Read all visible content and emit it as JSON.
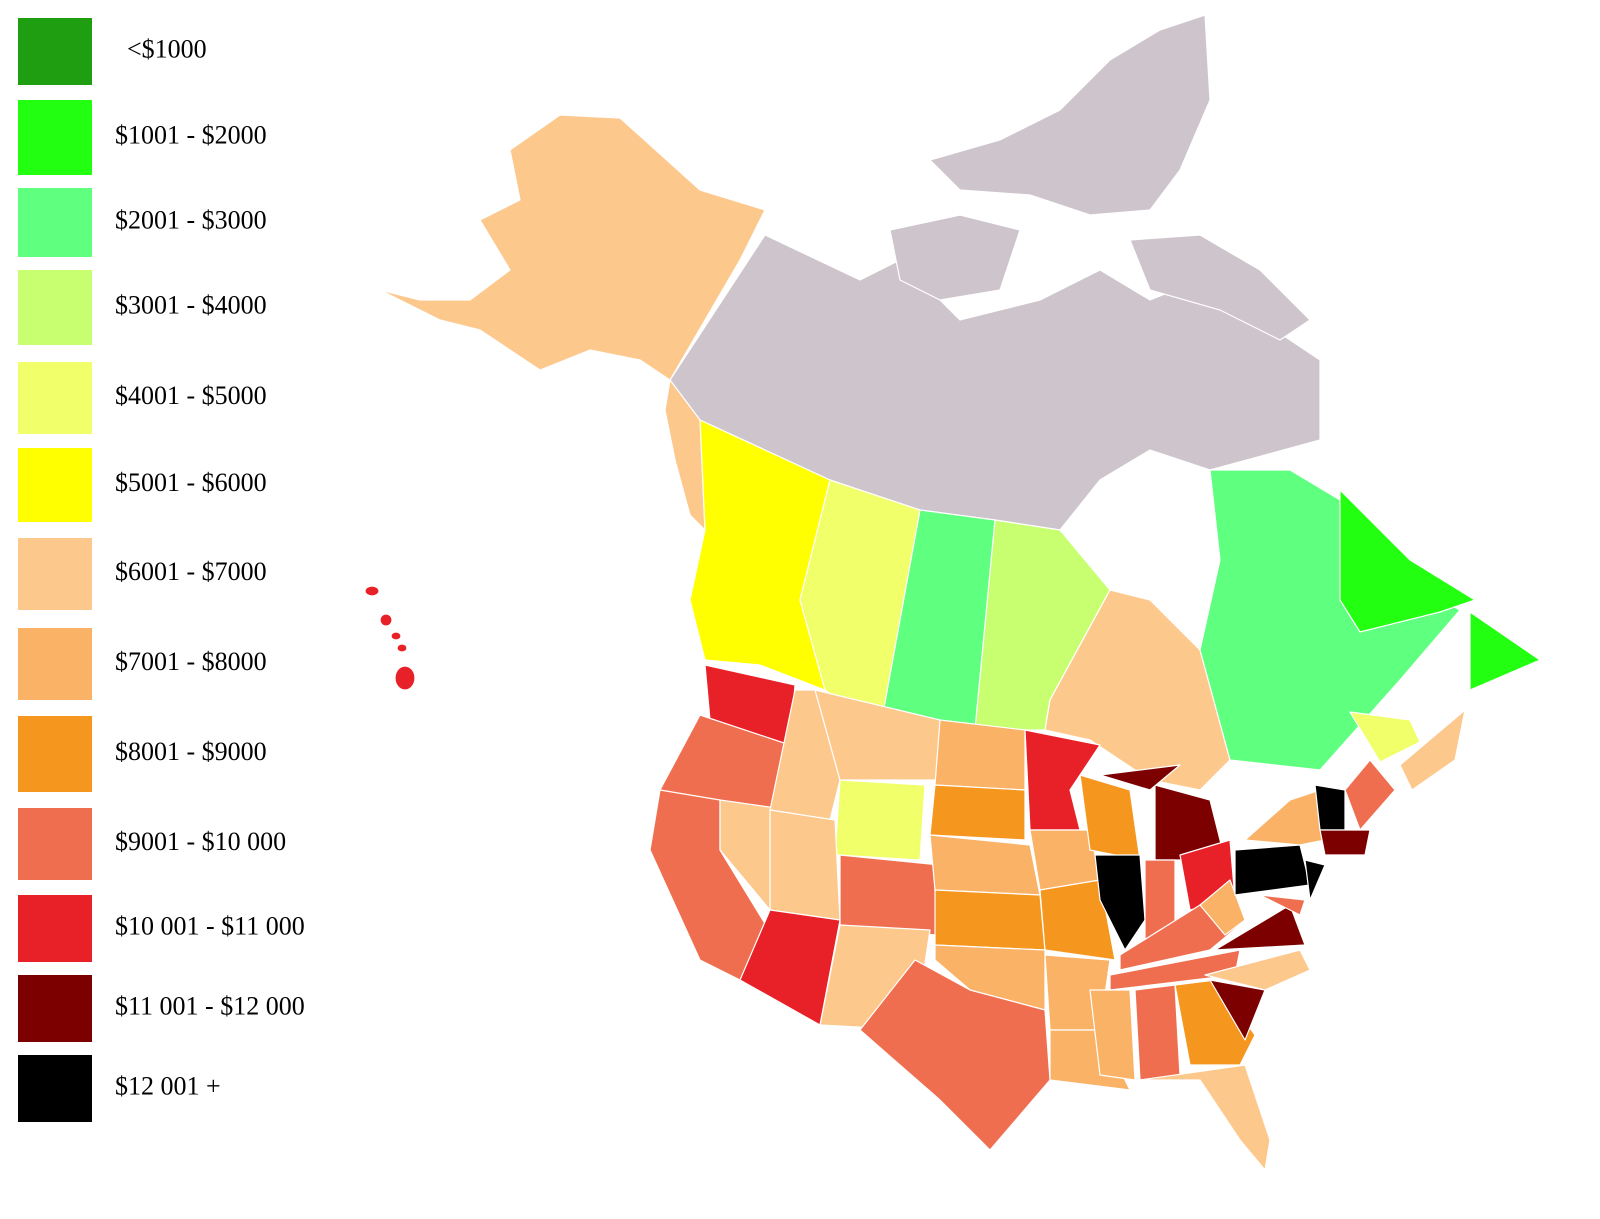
{
  "legend": {
    "items": [
      {
        "label": "<$1000",
        "color": "#1f9e12"
      },
      {
        "label": "$1001 - $2000",
        "color": "#22ff10"
      },
      {
        "label": "$2001 - $3000",
        "color": "#5fff80"
      },
      {
        "label": "$3001 - $4000",
        "color": "#c8ff70"
      },
      {
        "label": "$4001 - $5000",
        "color": "#f0ff6a"
      },
      {
        "label": "$5001 - $6000",
        "color": "#ffff00"
      },
      {
        "label": "$6001 - $7000",
        "color": "#fcc88c"
      },
      {
        "label": "$7001 - $8000",
        "color": "#fab266"
      },
      {
        "label": "$8001 - $9000",
        "color": "#f5961f"
      },
      {
        "label": "$9001 - $10 000",
        "color": "#f06e50"
      },
      {
        "label": "$10 001 - $11 000",
        "color": "#e82027"
      },
      {
        "label": "$11 001 - $12 000",
        "color": "#7c0000"
      },
      {
        "label": "$12 001 +",
        "color": "#000000"
      }
    ]
  }
}
